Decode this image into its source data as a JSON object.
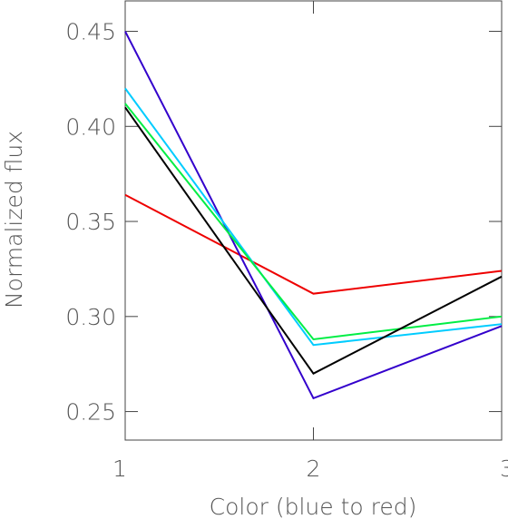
{
  "chart_data": {
    "type": "line",
    "x_label": "Color (blue to red)",
    "y_label": "Normalized flux",
    "x": [
      1,
      2,
      3
    ],
    "xlim": [
      1,
      3
    ],
    "xticks": [
      1,
      2,
      3
    ],
    "ylim": [
      0.235,
      0.466
    ],
    "yticks": [
      {
        "value": 0.25,
        "label": "0.25"
      },
      {
        "value": 0.3,
        "label": "0.30"
      },
      {
        "value": 0.35,
        "label": "0.35"
      },
      {
        "value": 0.4,
        "label": "0.40"
      },
      {
        "value": 0.45,
        "label": "0.45"
      }
    ],
    "series": [
      {
        "color": "#ee0000",
        "values": [
          0.364,
          0.312,
          0.324
        ]
      },
      {
        "color": "#3300cc",
        "values": [
          0.45,
          0.257,
          0.295
        ]
      },
      {
        "color": "#00ccff",
        "values": [
          0.42,
          0.285,
          0.296
        ]
      },
      {
        "color": "#00ee44",
        "values": [
          0.412,
          0.288,
          0.3
        ]
      },
      {
        "color": "#000000",
        "values": [
          0.41,
          0.27,
          0.321
        ]
      }
    ]
  }
}
